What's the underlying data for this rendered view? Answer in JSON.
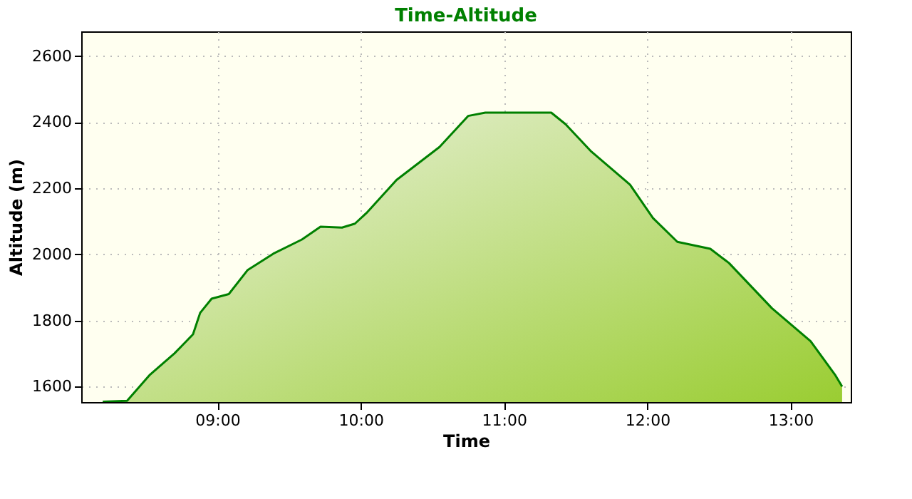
{
  "chart_data": {
    "type": "area",
    "title": "Time-Altitude",
    "xlabel": "Time",
    "ylabel": "Altitude (m)",
    "x": [
      8.2,
      8.37,
      8.53,
      8.7,
      8.83,
      8.88,
      8.96,
      9.08,
      9.21,
      9.39,
      9.59,
      9.72,
      9.87,
      9.96,
      10.04,
      10.25,
      10.55,
      10.75,
      10.87,
      11.33,
      11.43,
      11.61,
      11.88,
      12.04,
      12.21,
      12.44,
      12.57,
      12.87,
      13.14,
      13.31,
      13.36
    ],
    "series": [
      {
        "color": "#008000",
        "values": [
          1554,
          1557,
          1636,
          1700,
          1758,
          1823,
          1866,
          1880,
          1952,
          2002,
          2045,
          2084,
          2081,
          2093,
          2125,
          2225,
          2325,
          2419,
          2429,
          2429,
          2394,
          2311,
          2211,
          2110,
          2038,
          2017,
          1974,
          1837,
          1737,
          1636,
          1600
        ]
      }
    ],
    "xlim": [
      8.05,
      13.42
    ],
    "ylim": [
      1553,
      2675
    ],
    "xticks": [
      {
        "value": 9,
        "label": "09:00"
      },
      {
        "value": 10,
        "label": "10:00"
      },
      {
        "value": 11,
        "label": "11:00"
      },
      {
        "value": 12,
        "label": "12:00"
      },
      {
        "value": 13,
        "label": "13:00"
      }
    ],
    "yticks": [
      1600,
      1800,
      2000,
      2200,
      2400,
      2600
    ],
    "grid": true
  }
}
